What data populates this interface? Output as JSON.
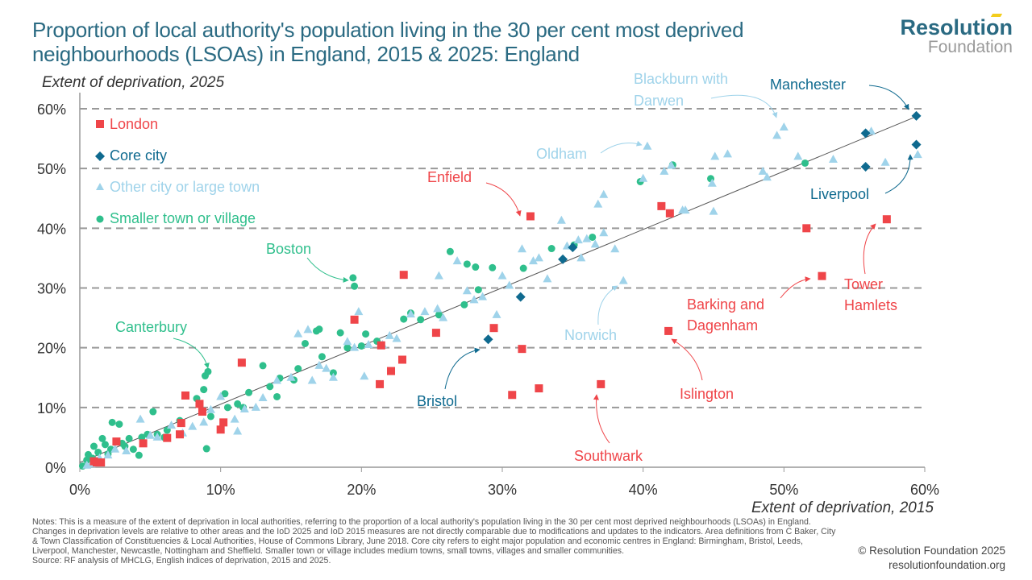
{
  "header": {
    "title_line1": "Proportion of local authority's population living in the 30 per cent most deprived",
    "title_line2": "neighbourhoods (LSOAs) in England, 2015 & 2025: England",
    "logo_top": "Resolution",
    "logo_bottom": "Foundation"
  },
  "colors": {
    "title": "#2a6a82",
    "london": "#ef4549",
    "core_city": "#0f6a8f",
    "other_city": "#9fd3ea",
    "smaller_town": "#2fbf8c",
    "grid": "#999999",
    "trend": "#555555"
  },
  "footer": {
    "notes": "Notes: This is a measure of the extent of deprivation in local authorities, referring to the proportion of a local authority's population living in the 30 per cent most deprived neighbourhoods (LSOAs) in England. Changes in deprivation levels are relative to other areas and the IoD 2025 and IoD 2015 measures are not directly comparable due to modifications and updates to the indicators. Area definitions from C Baker, City & Town Classification of Constituencies & Local Authorities, House of Commons Library, June 2018. Core city refers to eight major population and economic centres in England: Birmingham, Bristol, Leeds, Liverpool, Manchester, Newcastle, Nottingham and Sheffield. Smaller town or village includes medium towns, small towns, villages and smaller communities.",
    "source": "Source: RF analysis of MHCLG, English indices of deprivation, 2015 and 2025.",
    "copyright": "© Resolution Foundation 2025",
    "website": "resolutionfoundation.org"
  },
  "chart_data": {
    "type": "scatter",
    "title": "Proportion of local authority's population living in the 30 per cent most deprived neighbourhoods (LSOAs) in England, 2015 & 2025: England",
    "xlabel": "Extent of deprivation, 2015",
    "ylabel": "Extent of deprivation, 2025",
    "xlim": [
      0,
      60
    ],
    "ylim": [
      0,
      60
    ],
    "x_ticks": [
      "0%",
      "10%",
      "20%",
      "30%",
      "40%",
      "50%",
      "60%"
    ],
    "y_ticks": [
      "0%",
      "10%",
      "20%",
      "30%",
      "40%",
      "50%",
      "60%"
    ],
    "grid": "horizontal dashed",
    "trend_line": [
      [
        0,
        0.8
      ],
      [
        59.5,
        58.8
      ]
    ],
    "legend_position": "top-left",
    "series": [
      {
        "name": "London",
        "key": "london",
        "marker": "square",
        "points": [
          [
            1.2,
            0.8
          ],
          [
            1.5,
            0.8
          ],
          [
            1.0,
            1.0
          ],
          [
            2.6,
            4.3
          ],
          [
            4.5,
            4.0
          ],
          [
            6.2,
            4.9
          ],
          [
            7.1,
            5.5
          ],
          [
            7.2,
            7.4
          ],
          [
            7.5,
            12.0
          ],
          [
            8.5,
            10.6
          ],
          [
            8.7,
            9.3
          ],
          [
            10.0,
            6.3
          ],
          [
            10.2,
            7.5
          ],
          [
            11.5,
            17.5
          ],
          [
            19.5,
            24.7
          ],
          [
            21.3,
            13.9
          ],
          [
            21.4,
            20.4
          ],
          [
            22.1,
            16.1
          ],
          [
            22.9,
            18.0
          ],
          [
            23.0,
            32.2
          ],
          [
            25.3,
            22.5
          ],
          [
            29.4,
            23.3
          ],
          [
            30.7,
            12.1
          ],
          [
            31.4,
            19.8
          ],
          [
            32.0,
            42.0
          ],
          [
            32.6,
            13.2
          ],
          [
            37.0,
            13.9
          ],
          [
            41.3,
            43.7
          ],
          [
            41.9,
            42.5
          ],
          [
            41.8,
            22.8
          ],
          [
            51.6,
            40.0
          ],
          [
            52.7,
            32.0
          ],
          [
            57.3,
            41.5
          ]
        ]
      },
      {
        "name": "Core city",
        "key": "core_city",
        "marker": "diamond",
        "points": [
          [
            29.0,
            21.4
          ],
          [
            31.3,
            28.5
          ],
          [
            34.3,
            34.8
          ],
          [
            35.0,
            36.8
          ],
          [
            55.8,
            55.9
          ],
          [
            55.8,
            50.3
          ],
          [
            59.4,
            58.8
          ],
          [
            59.4,
            54.0
          ]
        ]
      },
      {
        "name": "Other city or large town",
        "key": "other_city",
        "marker": "triangle",
        "points": [
          [
            0.5,
            0.3
          ],
          [
            0.8,
            0.5
          ],
          [
            1.4,
            1.5
          ],
          [
            2.0,
            2.0
          ],
          [
            2.5,
            3.0
          ],
          [
            3.3,
            2.7
          ],
          [
            4.3,
            8.0
          ],
          [
            5.0,
            5.3
          ],
          [
            5.5,
            5.0
          ],
          [
            6.5,
            7.0
          ],
          [
            7.3,
            5.7
          ],
          [
            8.0,
            6.8
          ],
          [
            8.8,
            7.5
          ],
          [
            9.3,
            9.6
          ],
          [
            10.0,
            11.8
          ],
          [
            11.0,
            8.0
          ],
          [
            11.2,
            6.0
          ],
          [
            11.7,
            9.7
          ],
          [
            12.5,
            10.0
          ],
          [
            13.0,
            11.6
          ],
          [
            14.0,
            14.5
          ],
          [
            15.0,
            15.0
          ],
          [
            15.5,
            22.3
          ],
          [
            16.2,
            23.0
          ],
          [
            16.5,
            14.5
          ],
          [
            17.0,
            17.0
          ],
          [
            17.5,
            16.5
          ],
          [
            18.0,
            15.0
          ],
          [
            19.0,
            21.0
          ],
          [
            19.5,
            20.0
          ],
          [
            19.8,
            26.0
          ],
          [
            20.2,
            15.2
          ],
          [
            20.5,
            20.5
          ],
          [
            21.5,
            20.5
          ],
          [
            22.0,
            22.0
          ],
          [
            22.5,
            21.5
          ],
          [
            23.5,
            25.6
          ],
          [
            24.5,
            26.0
          ],
          [
            25.4,
            26.5
          ],
          [
            25.8,
            25.0
          ],
          [
            25.5,
            32.0
          ],
          [
            26.8,
            34.5
          ],
          [
            27.5,
            29.5
          ],
          [
            28.0,
            28.0
          ],
          [
            28.6,
            28.5
          ],
          [
            29.6,
            25.5
          ],
          [
            30.0,
            32.0
          ],
          [
            30.5,
            30.4
          ],
          [
            31.4,
            36.5
          ],
          [
            32.2,
            34.5
          ],
          [
            32.6,
            35.0
          ],
          [
            33.2,
            31.5
          ],
          [
            34.2,
            41.3
          ],
          [
            34.6,
            37.0
          ],
          [
            35.4,
            38.0
          ],
          [
            35.6,
            35.0
          ],
          [
            36.0,
            38.2
          ],
          [
            36.6,
            37.3
          ],
          [
            36.8,
            44.0
          ],
          [
            37.2,
            45.6
          ],
          [
            37.2,
            39.2
          ],
          [
            38.0,
            36.5
          ],
          [
            38.6,
            31.2
          ],
          [
            40.0,
            48.3
          ],
          [
            40.3,
            53.7
          ],
          [
            41.5,
            49.5
          ],
          [
            42.0,
            50.5
          ],
          [
            42.8,
            43.0
          ],
          [
            43.0,
            43.0
          ],
          [
            44.9,
            47.5
          ],
          [
            45.0,
            42.8
          ],
          [
            45.1,
            52.0
          ],
          [
            46.0,
            52.4
          ],
          [
            48.5,
            49.5
          ],
          [
            48.8,
            48.5
          ],
          [
            49.5,
            55.5
          ],
          [
            50.0,
            56.9
          ],
          [
            51.0,
            52.0
          ],
          [
            53.5,
            51.5
          ],
          [
            56.2,
            56.2
          ],
          [
            57.2,
            51.0
          ],
          [
            59.5,
            52.3
          ]
        ]
      },
      {
        "name": "Smaller town or village",
        "key": "smaller_town",
        "marker": "circle",
        "points": [
          [
            0.2,
            0.2
          ],
          [
            0.5,
            1.2
          ],
          [
            0.6,
            2.1
          ],
          [
            0.9,
            1.5
          ],
          [
            1.0,
            3.5
          ],
          [
            1.3,
            2.5
          ],
          [
            1.6,
            4.8
          ],
          [
            1.8,
            3.8
          ],
          [
            2.0,
            2.2
          ],
          [
            2.2,
            3.0
          ],
          [
            2.3,
            7.5
          ],
          [
            2.8,
            7.2
          ],
          [
            3.0,
            4.0
          ],
          [
            3.2,
            3.5
          ],
          [
            3.5,
            4.8
          ],
          [
            3.8,
            3.0
          ],
          [
            4.2,
            2.0
          ],
          [
            4.4,
            5.0
          ],
          [
            4.8,
            5.5
          ],
          [
            5.2,
            9.3
          ],
          [
            5.5,
            5.5
          ],
          [
            6.0,
            5.0
          ],
          [
            6.2,
            6.2
          ],
          [
            7.1,
            7.8
          ],
          [
            8.3,
            11.5
          ],
          [
            8.8,
            13.0
          ],
          [
            8.9,
            15.3
          ],
          [
            9.1,
            16.0
          ],
          [
            9.0,
            3.1
          ],
          [
            9.3,
            8.5
          ],
          [
            10.3,
            12.3
          ],
          [
            10.5,
            10.0
          ],
          [
            11.2,
            10.6
          ],
          [
            11.6,
            10.0
          ],
          [
            12.0,
            12.5
          ],
          [
            13.0,
            17.0
          ],
          [
            13.5,
            13.5
          ],
          [
            14.0,
            11.8
          ],
          [
            14.2,
            14.9
          ],
          [
            15.2,
            14.6
          ],
          [
            15.5,
            16.5
          ],
          [
            16.0,
            20.7
          ],
          [
            16.8,
            22.8
          ],
          [
            17.0,
            23.1
          ],
          [
            17.2,
            18.5
          ],
          [
            18.0,
            15.8
          ],
          [
            18.5,
            22.5
          ],
          [
            19.0,
            20.0
          ],
          [
            19.4,
            31.7
          ],
          [
            19.5,
            30.3
          ],
          [
            20.0,
            20.3
          ],
          [
            20.3,
            22.3
          ],
          [
            21.1,
            21.1
          ],
          [
            23.0,
            24.8
          ],
          [
            23.5,
            25.8
          ],
          [
            24.2,
            24.7
          ],
          [
            25.5,
            25.5
          ],
          [
            26.3,
            36.1
          ],
          [
            27.3,
            27.2
          ],
          [
            27.5,
            34.0
          ],
          [
            28.1,
            33.5
          ],
          [
            28.3,
            29.7
          ],
          [
            29.3,
            33.4
          ],
          [
            31.5,
            33.3
          ],
          [
            33.5,
            36.6
          ],
          [
            35.1,
            37.2
          ],
          [
            36.4,
            38.5
          ],
          [
            39.8,
            47.8
          ],
          [
            42.1,
            50.6
          ],
          [
            44.8,
            48.3
          ],
          [
            51.5,
            50.9
          ]
        ]
      }
    ],
    "annotations": [
      {
        "label": "Enfield",
        "series": "london"
      },
      {
        "label": "Boston",
        "series": "smaller_town"
      },
      {
        "label": "Canterbury",
        "series": "smaller_town"
      },
      {
        "label": "Oldham",
        "series": "other_city"
      },
      {
        "label": "Blackburn with Darwen",
        "series": "other_city"
      },
      {
        "label": "Manchester",
        "series": "core_city"
      },
      {
        "label": "Liverpool",
        "series": "core_city"
      },
      {
        "label": "Norwich",
        "series": "other_city"
      },
      {
        "label": "Bristol",
        "series": "core_city"
      },
      {
        "label": "Southwark",
        "series": "london"
      },
      {
        "label": "Islington",
        "series": "london"
      },
      {
        "label": "Barking and Dagenham",
        "series": "london"
      },
      {
        "label": "Tower Hamlets",
        "series": "london"
      }
    ]
  }
}
